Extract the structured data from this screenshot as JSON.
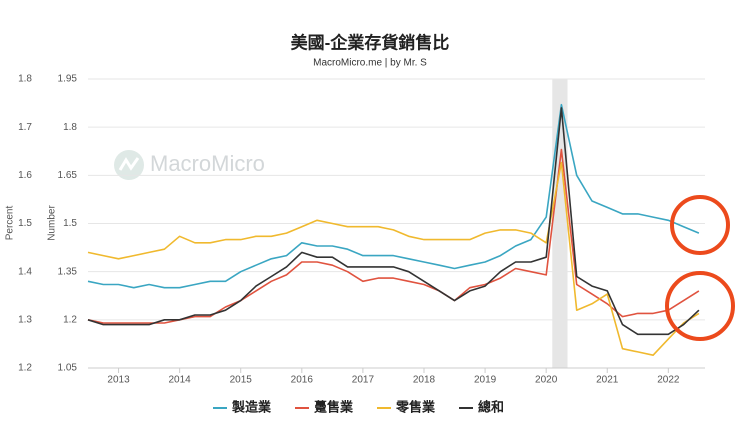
{
  "chart_data": {
    "type": "line",
    "title": "美國-企業存貨銷售比",
    "subtitle": "MacroMicro.me | by Mr. S",
    "watermark": "MacroMicro",
    "ylabel": "Percent",
    "y2label": "Number",
    "x": [
      2012.5,
      2012.75,
      2013,
      2013.25,
      2013.5,
      2013.75,
      2014,
      2014.25,
      2014.5,
      2014.75,
      2015,
      2015.25,
      2015.5,
      2015.75,
      2016,
      2016.25,
      2016.5,
      2016.75,
      2017,
      2017.25,
      2017.5,
      2017.75,
      2018,
      2018.25,
      2018.5,
      2018.75,
      2019,
      2019.25,
      2019.5,
      2019.75,
      2020,
      2020.25,
      2020.5,
      2020.75,
      2021,
      2021.25,
      2021.5,
      2021.75,
      2022,
      2022.25,
      2022.5
    ],
    "xlim": [
      2012.5,
      2022.6
    ],
    "xticks": [
      2013,
      2014,
      2015,
      2016,
      2017,
      2018,
      2019,
      2020,
      2021,
      2022
    ],
    "ylim": [
      1.2,
      1.8
    ],
    "yticks": [
      1.2,
      1.3,
      1.4,
      1.5,
      1.6,
      1.7,
      1.8
    ],
    "y2lim": [
      1.05,
      1.95
    ],
    "y2ticks": [
      1.05,
      1.2,
      1.35,
      1.5,
      1.65,
      1.8,
      1.95
    ],
    "shaded_x": [
      2020.1,
      2020.35
    ],
    "grid": true,
    "legend": "bottom",
    "series": [
      {
        "name": "製造業",
        "color": "#3aa6c2",
        "axis": "y2",
        "values": [
          1.32,
          1.31,
          1.31,
          1.3,
          1.31,
          1.3,
          1.3,
          1.31,
          1.32,
          1.32,
          1.35,
          1.37,
          1.39,
          1.4,
          1.44,
          1.43,
          1.43,
          1.42,
          1.4,
          1.4,
          1.4,
          1.39,
          1.38,
          1.37,
          1.36,
          1.37,
          1.38,
          1.4,
          1.43,
          1.45,
          1.52,
          1.87,
          1.65,
          1.57,
          1.55,
          1.53,
          1.53,
          1.52,
          1.51,
          1.49,
          1.47
        ]
      },
      {
        "name": "躉售業",
        "color": "#e0533f",
        "axis": "y2",
        "values": [
          1.2,
          1.19,
          1.19,
          1.19,
          1.19,
          1.19,
          1.2,
          1.21,
          1.21,
          1.24,
          1.26,
          1.29,
          1.32,
          1.34,
          1.38,
          1.38,
          1.37,
          1.35,
          1.32,
          1.33,
          1.33,
          1.32,
          1.31,
          1.29,
          1.26,
          1.3,
          1.31,
          1.33,
          1.36,
          1.35,
          1.34,
          1.73,
          1.31,
          1.28,
          1.25,
          1.21,
          1.22,
          1.22,
          1.23,
          1.26,
          1.29
        ]
      },
      {
        "name": "零售業",
        "color": "#f0b92e",
        "axis": "y2",
        "values": [
          1.41,
          1.4,
          1.39,
          1.4,
          1.41,
          1.42,
          1.46,
          1.44,
          1.44,
          1.45,
          1.45,
          1.46,
          1.46,
          1.47,
          1.49,
          1.51,
          1.5,
          1.49,
          1.49,
          1.49,
          1.48,
          1.46,
          1.45,
          1.45,
          1.45,
          1.45,
          1.47,
          1.48,
          1.48,
          1.47,
          1.44,
          1.69,
          1.23,
          1.25,
          1.28,
          1.11,
          1.1,
          1.09,
          1.14,
          1.19,
          1.22
        ]
      },
      {
        "name": "總和",
        "color": "#333333",
        "values": [
          1.3,
          1.29,
          1.29,
          1.29,
          1.29,
          1.3,
          1.3,
          1.31,
          1.31,
          1.32,
          1.34,
          1.37,
          1.39,
          1.41,
          1.44,
          1.43,
          1.43,
          1.41,
          1.41,
          1.41,
          1.41,
          1.4,
          1.38,
          1.36,
          1.34,
          1.36,
          1.37,
          1.4,
          1.42,
          1.42,
          1.43,
          1.74,
          1.39,
          1.37,
          1.36,
          1.29,
          1.27,
          1.27,
          1.27,
          1.29,
          1.32
        ]
      }
    ]
  }
}
